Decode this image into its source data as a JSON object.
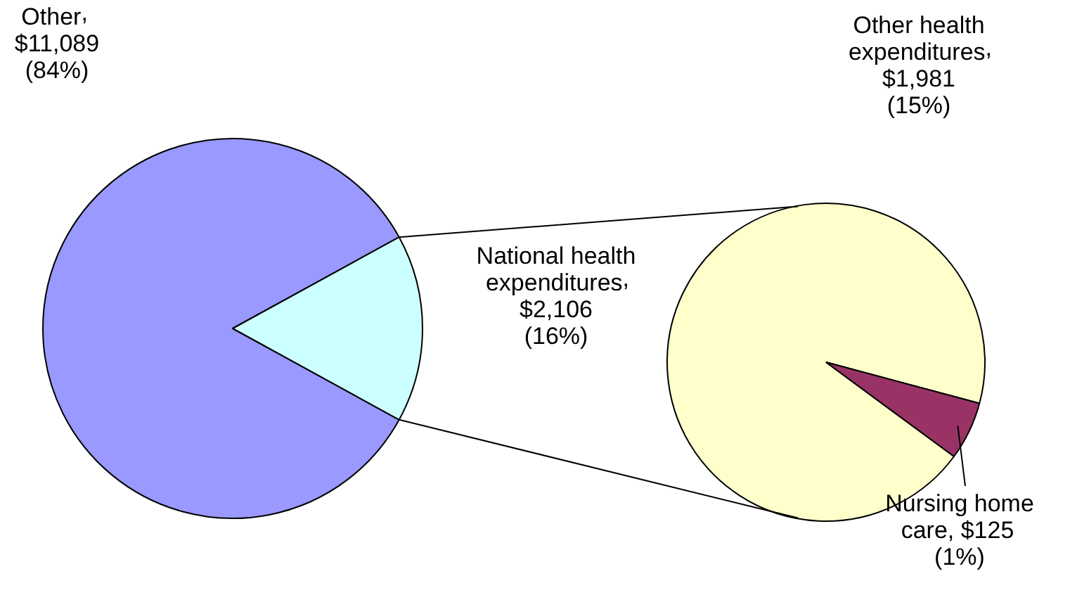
{
  "chart_data": [
    {
      "type": "pie",
      "categories": [
        "Other",
        "National health expenditures"
      ],
      "values": [
        11089,
        2106
      ],
      "colors": [
        "#9999ff",
        "#ccffff"
      ],
      "value_labels": [
        ", $11,089 (84%)",
        ", $2,106 (16%)"
      ]
    },
    {
      "type": "pie",
      "categories": [
        "Other health expenditures",
        "Nursing home care"
      ],
      "values": [
        1981,
        125
      ],
      "colors": [
        "#ffffcc",
        "#993366"
      ],
      "value_labels": [
        ", $1,981 (15%)",
        ", $125 (1%)"
      ]
    }
  ]
}
